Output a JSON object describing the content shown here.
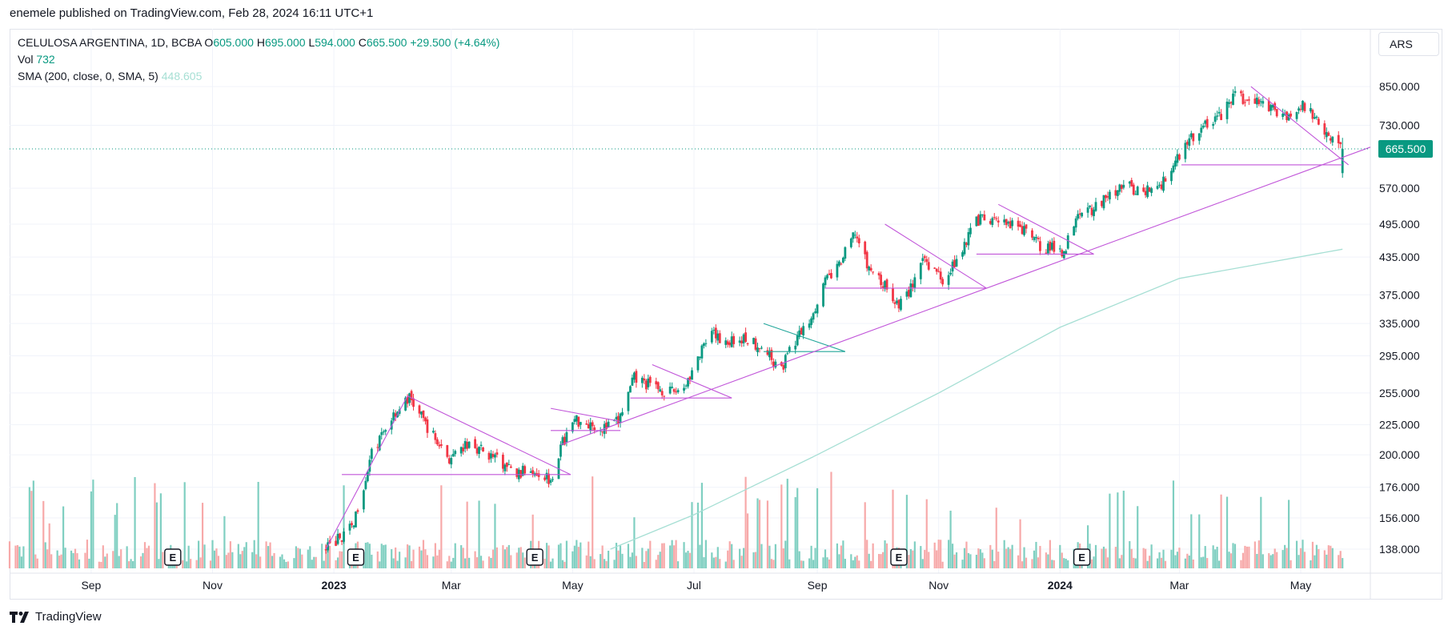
{
  "header": {
    "publish_line": "enemele published on TradingView.com, Feb 28, 2024 16:11 UTC+1"
  },
  "legend": {
    "symbol": "CELULOSA ARGENTINA, 1D, BCBA",
    "open_label": "O",
    "open": "605.000",
    "high_label": "H",
    "high": "695.000",
    "low_label": "L",
    "low": "594.000",
    "close_label": "C",
    "close": "665.500",
    "change": "+29.500 (+4.64%)",
    "vol_label": "Vol",
    "vol_value": "732",
    "sma_label": "SMA (200, close, 0, SMA, 5)",
    "sma_value": "448.605"
  },
  "toolbar": {
    "currency": "ARS"
  },
  "price_tag": "665.500",
  "brand": {
    "name": "TradingView"
  },
  "colors": {
    "up": "#089981",
    "down": "#f23645",
    "vol_up": "#7fcfc1",
    "vol_down": "#f7a9a9",
    "sma": "#a6dfd4",
    "drawing": "#c155d9",
    "drawing_teal": "#22a69a",
    "grid": "#f0f3fa",
    "axis_text": "#131722"
  },
  "icons": {
    "earnings": "earnings-E-icon",
    "brand": "tradingview-logo-icon"
  },
  "chart_data": {
    "type": "candlestick",
    "symbol": "CELULOSA ARGENTINA",
    "interval": "1D",
    "exchange": "BCBA",
    "scale": "log",
    "yticks": [
      "850.000",
      "730.000",
      "570.000",
      "495.000",
      "435.000",
      "375.000",
      "335.000",
      "295.000",
      "255.000",
      "225.000",
      "200.000",
      "176.000",
      "156.000",
      "138.000"
    ],
    "ytick_values": [
      850,
      730,
      570,
      495,
      435,
      375,
      335,
      295,
      255,
      225,
      200,
      176,
      156,
      138
    ],
    "xticks": [
      "Sep",
      "Nov",
      "2023",
      "Mar",
      "May",
      "Jul",
      "Sep",
      "Nov",
      "2024",
      "Mar",
      "May"
    ],
    "xtick_dates": [
      "2022-09-01",
      "2022-11-01",
      "2023-01-01",
      "2023-03-01",
      "2023-05-01",
      "2023-07-01",
      "2023-09-01",
      "2023-11-01",
      "2024-01-01",
      "2024-03-01",
      "2024-05-01"
    ],
    "x_range": [
      "2022-07-22",
      "2024-06-05"
    ],
    "y_range": [
      130,
      900
    ],
    "earnings_dates": [
      "2022-10-12",
      "2023-01-12",
      "2023-04-12",
      "2023-10-12",
      "2024-01-12"
    ],
    "earnings_label": "E",
    "price_anchors": [
      [
        "2022-12-28",
        138
      ],
      [
        "2023-01-10",
        150
      ],
      [
        "2023-01-20",
        200
      ],
      [
        "2023-01-31",
        235
      ],
      [
        "2023-02-08",
        250
      ],
      [
        "2023-02-20",
        215
      ],
      [
        "2023-03-01",
        195
      ],
      [
        "2023-03-10",
        210
      ],
      [
        "2023-03-20",
        200
      ],
      [
        "2023-04-03",
        185
      ],
      [
        "2023-04-10",
        190
      ],
      [
        "2023-04-20",
        182
      ],
      [
        "2023-04-26",
        210
      ],
      [
        "2023-05-02",
        230
      ],
      [
        "2023-05-10",
        226
      ],
      [
        "2023-05-17",
        222
      ],
      [
        "2023-05-24",
        228
      ],
      [
        "2023-06-01",
        270
      ],
      [
        "2023-06-10",
        262
      ],
      [
        "2023-06-20",
        255
      ],
      [
        "2023-06-26",
        262
      ],
      [
        "2023-07-05",
        300
      ],
      [
        "2023-07-10",
        320
      ],
      [
        "2023-07-18",
        312
      ],
      [
        "2023-07-26",
        316
      ],
      [
        "2023-08-03",
        308
      ],
      [
        "2023-08-10",
        290
      ],
      [
        "2023-08-15",
        285
      ],
      [
        "2023-08-20",
        310
      ],
      [
        "2023-08-28",
        340
      ],
      [
        "2023-09-05",
        395
      ],
      [
        "2023-09-12",
        420
      ],
      [
        "2023-09-20",
        480
      ],
      [
        "2023-09-26",
        420
      ],
      [
        "2023-10-03",
        395
      ],
      [
        "2023-10-12",
        360
      ],
      [
        "2023-10-17",
        380
      ],
      [
        "2023-10-25",
        430
      ],
      [
        "2023-11-03",
        400
      ],
      [
        "2023-11-10",
        430
      ],
      [
        "2023-11-20",
        505
      ],
      [
        "2023-12-05",
        495
      ],
      [
        "2023-12-15",
        480
      ],
      [
        "2023-12-22",
        455
      ],
      [
        "2024-01-03",
        445
      ],
      [
        "2024-01-10",
        525
      ],
      [
        "2024-01-17",
        525
      ],
      [
        "2024-01-24",
        545
      ],
      [
        "2024-02-01",
        580
      ],
      [
        "2024-02-10",
        560
      ],
      [
        "2024-02-20",
        575
      ],
      [
        "2024-02-26",
        620
      ],
      [
        "2024-03-04",
        680
      ],
      [
        "2024-03-14",
        730
      ],
      [
        "2024-03-22",
        760
      ],
      [
        "2024-03-28",
        820
      ],
      [
        "2024-04-04",
        800
      ],
      [
        "2024-04-12",
        800
      ],
      [
        "2024-04-18",
        770
      ],
      [
        "2024-04-26",
        760
      ],
      [
        "2024-05-03",
        790
      ],
      [
        "2024-05-10",
        740
      ],
      [
        "2024-05-16",
        700
      ],
      [
        "2024-05-22",
        665.5
      ]
    ],
    "sma": {
      "name": "SMA (200, close, 0, SMA, 5)",
      "points": [
        [
          "2023-05-20",
          138
        ],
        [
          "2023-07-01",
          158
        ],
        [
          "2023-09-01",
          200
        ],
        [
          "2023-11-01",
          255
        ],
        [
          "2024-01-01",
          330
        ],
        [
          "2024-03-01",
          400
        ],
        [
          "2024-05-22",
          448.605
        ]
      ]
    },
    "last": {
      "date": "2024-05-22",
      "open": 605,
      "high": 695,
      "low": 594,
      "close": 665.5,
      "change": 29.5,
      "change_pct": 4.64,
      "volume": 732
    },
    "drawings": [
      {
        "color": "drawing",
        "points": [
          [
            "2022-12-28",
            138
          ],
          [
            "2023-02-07",
            252
          ]
        ]
      },
      {
        "color": "drawing",
        "points": [
          [
            "2023-02-07",
            252
          ],
          [
            "2023-04-30",
            185
          ]
        ]
      },
      {
        "color": "drawing",
        "points": [
          [
            "2023-01-05",
            185
          ],
          [
            "2023-04-30",
            185
          ]
        ]
      },
      {
        "color": "drawing",
        "points": [
          [
            "2023-04-20",
            240
          ],
          [
            "2023-05-25",
            228
          ]
        ]
      },
      {
        "color": "drawing",
        "points": [
          [
            "2023-04-20",
            220
          ],
          [
            "2023-05-25",
            220
          ]
        ]
      },
      {
        "color": "drawing",
        "points": [
          [
            "2023-06-10",
            285
          ],
          [
            "2023-07-20",
            250
          ]
        ]
      },
      {
        "color": "drawing",
        "points": [
          [
            "2023-05-30",
            250
          ],
          [
            "2023-07-20",
            250
          ]
        ]
      },
      {
        "color": "drawing_teal",
        "points": [
          [
            "2023-08-05",
            335
          ],
          [
            "2023-09-15",
            300
          ]
        ]
      },
      {
        "color": "drawing_teal",
        "points": [
          [
            "2023-08-05",
            300
          ],
          [
            "2023-09-15",
            300
          ]
        ]
      },
      {
        "color": "drawing",
        "points": [
          [
            "2023-10-05",
            495
          ],
          [
            "2023-11-25",
            385
          ]
        ]
      },
      {
        "color": "drawing",
        "points": [
          [
            "2023-09-05",
            385
          ],
          [
            "2023-11-25",
            385
          ]
        ]
      },
      {
        "color": "drawing",
        "points": [
          [
            "2023-12-01",
            535
          ],
          [
            "2024-01-18",
            440
          ]
        ]
      },
      {
        "color": "drawing",
        "points": [
          [
            "2023-11-20",
            440
          ],
          [
            "2024-01-18",
            440
          ]
        ]
      },
      {
        "color": "drawing",
        "points": [
          [
            "2024-04-06",
            850
          ],
          [
            "2024-05-25",
            625
          ]
        ]
      },
      {
        "color": "drawing",
        "points": [
          [
            "2024-03-02",
            625
          ],
          [
            "2024-05-22",
            625
          ]
        ]
      },
      {
        "color": "drawing",
        "points": [
          [
            "2023-04-25",
            208
          ],
          [
            "2024-06-05",
            670
          ]
        ]
      }
    ]
  }
}
